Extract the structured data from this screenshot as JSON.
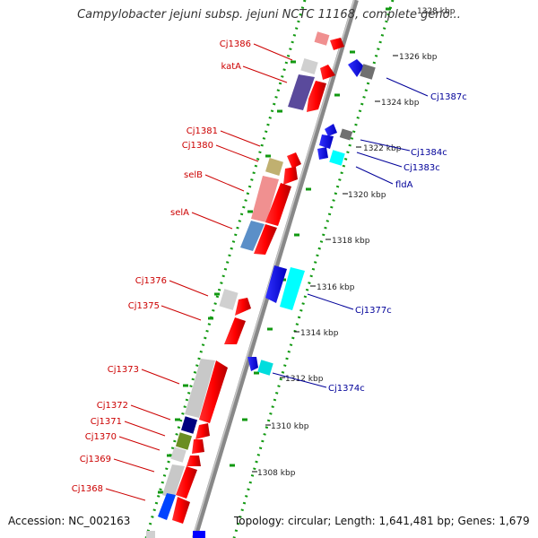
{
  "title": "Campylobacter jejuni subsp. jejuni NCTC 11168, complete geno...",
  "footer": {
    "accession_label": "Accession:",
    "accession": "NC_002163",
    "topology_label": "Topology:",
    "topology": "circular",
    "length_label": "Length:",
    "length": "1,641,481 bp",
    "genes_label": "Genes:",
    "genes": "1,679"
  },
  "scale_labels": [
    "1328 kbp",
    "1326 kbp",
    "1324 kbp",
    "1322 kbp",
    "1320 kbp",
    "1318 kbp",
    "1316 kbp",
    "1314 kbp",
    "1312 kbp",
    "1310 kbp",
    "1308 kbp"
  ],
  "left_gene_labels": [
    "Cj1386",
    "katA",
    "Cj1381",
    "Cj1380",
    "selB",
    "selA",
    "Cj1376",
    "Cj1375",
    "Cj1373",
    "Cj1372",
    "Cj1371",
    "Cj1370",
    "Cj1369",
    "Cj1368"
  ],
  "right_gene_labels": [
    "Cj1387c",
    "Cj1384c",
    "Cj1383c",
    "fldA",
    "Cj1377c",
    "Cj1374c"
  ],
  "colors": {
    "forward_label": "#cc0000",
    "reverse_label": "#000099",
    "cds_forward": "#ff0000",
    "cds_reverse": "#0000ff",
    "backbone": "#888888",
    "dotted_track": "#119911"
  }
}
